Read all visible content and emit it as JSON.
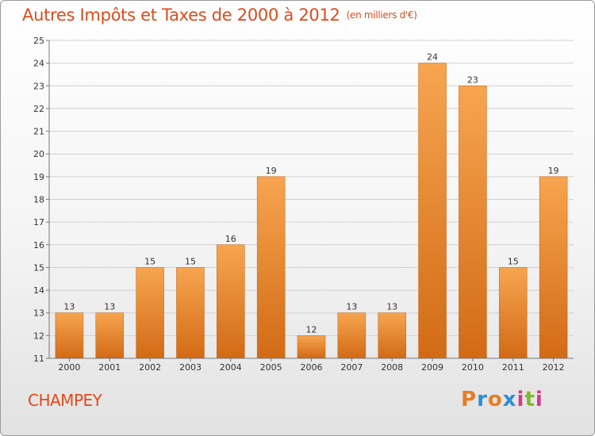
{
  "header": {
    "title": "Autres Impôts et Taxes de 2000 à 2012",
    "unit": "(en milliers d'€)"
  },
  "footer": {
    "commune": "CHAMPEY",
    "logo_text": "Proxiti"
  },
  "colors": {
    "title": "#e04a1a",
    "bar_top": "#f7a550",
    "bar_bottom": "#d26a15",
    "logo_letters": [
      "#e67e22",
      "#2c8fd6",
      "#e67e22",
      "#2c8fd6",
      "#d63a8a",
      "#7dbb2a",
      "#d63a8a"
    ]
  },
  "chart_data": {
    "type": "bar",
    "title": "Autres Impôts et Taxes de 2000 à 2012",
    "xlabel": "",
    "ylabel": "",
    "categories": [
      "2000",
      "2001",
      "2002",
      "2003",
      "2004",
      "2005",
      "2006",
      "2007",
      "2008",
      "2009",
      "2010",
      "2011",
      "2012"
    ],
    "values": [
      13,
      13,
      15,
      15,
      16,
      19,
      12,
      13,
      13,
      24,
      23,
      15,
      19
    ],
    "ylim": [
      11,
      25
    ],
    "yticks": [
      11,
      12,
      13,
      14,
      15,
      16,
      17,
      18,
      19,
      20,
      21,
      22,
      23,
      24,
      25
    ],
    "grid": true
  }
}
